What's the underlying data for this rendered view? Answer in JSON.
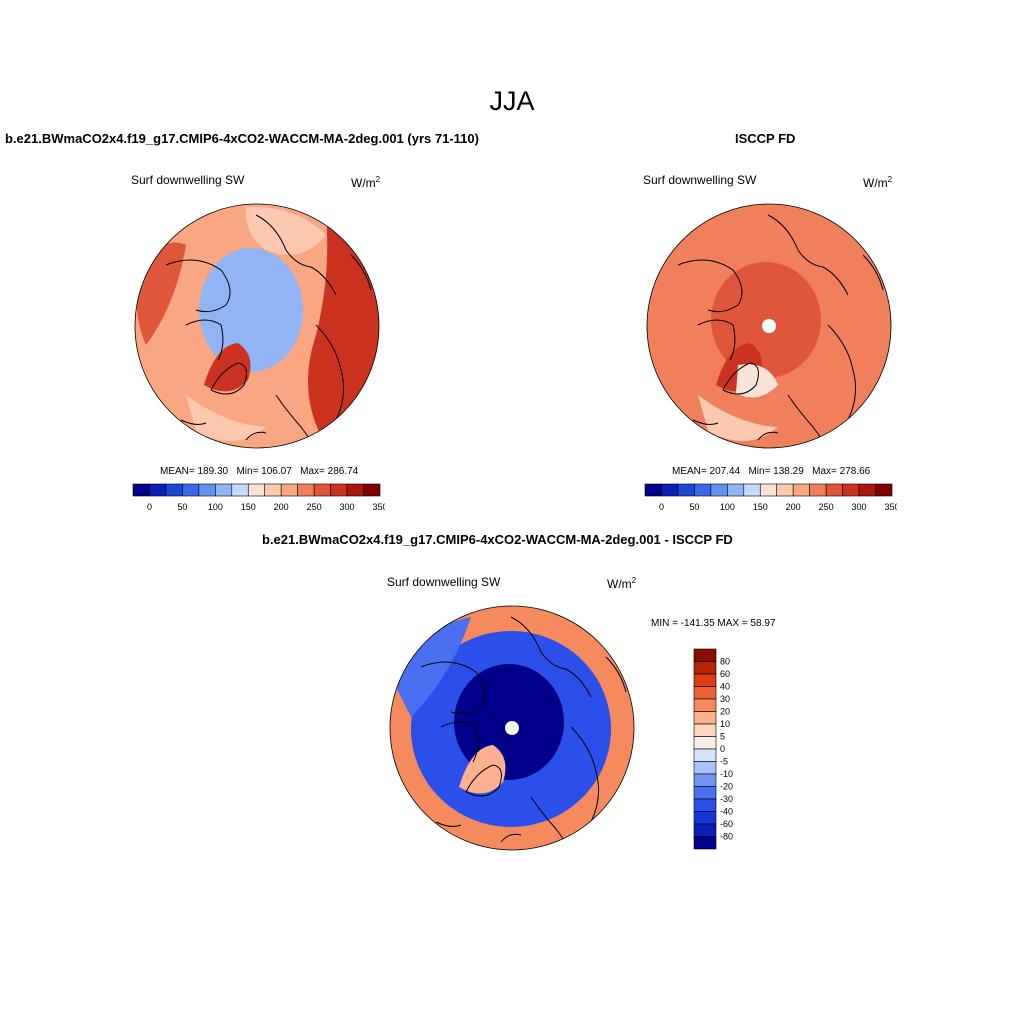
{
  "page": {
    "title": "JJA"
  },
  "colors": {
    "coast": "#000000",
    "missing": "#ffffff",
    "abs_scale": [
      "#00008b",
      "#0a1fb6",
      "#1c46d6",
      "#3a68e6",
      "#6690ee",
      "#93b4f4",
      "#c6dafb",
      "#f7e3d8",
      "#fcc9b0",
      "#f8a782",
      "#f07f5c",
      "#e0563b",
      "#cc3220",
      "#aa1710",
      "#820000"
    ],
    "diff_scale": [
      "#00008b",
      "#0c1fb5",
      "#1636d7",
      "#2b4fe9",
      "#4a6ff0",
      "#7394f3",
      "#a7c2f8",
      "#d6e4fb",
      "#faeee6",
      "#fdd4bf",
      "#fbb18f",
      "#f68a5f",
      "#ee6336",
      "#dd3d12",
      "#b52405",
      "#8a0f00"
    ]
  },
  "chart_data": [
    {
      "type": "heatmap",
      "projection": "north-polar-stereographic",
      "title": "b.e21.BWmaCO2x4.f19_g17.CMIP6-4xCO2-WACCM-MA-2deg.001 (yrs 71-110)",
      "variable": "Surf downwelling SW",
      "units_label": "W/m",
      "units_exp": "2",
      "stats": {
        "mean": "189.30",
        "min": "106.07",
        "max": "286.74"
      },
      "stats_text": {
        "mean": "MEAN= 189.30",
        "min": "Min= 106.07",
        "max": "Max= 286.74"
      },
      "colorbar": {
        "orientation": "horizontal",
        "levels": [
          0,
          25,
          50,
          75,
          100,
          125,
          150,
          175,
          200,
          225,
          250,
          275,
          300,
          325,
          350
        ],
        "tick_labels": [
          "0",
          "50",
          "100",
          "150",
          "200",
          "250",
          "300",
          "350"
        ]
      },
      "regions": [
        {
          "name": "background",
          "value": 215
        },
        {
          "name": "arctic-ocean",
          "value": 120
        },
        {
          "name": "greenland",
          "value": 285
        },
        {
          "name": "eurasia-east",
          "value": 275
        },
        {
          "name": "north-america-west",
          "value": 260
        },
        {
          "name": "siberia",
          "value": 195
        },
        {
          "name": "north-atlantic",
          "value": 175
        }
      ]
    },
    {
      "type": "heatmap",
      "projection": "north-polar-stereographic",
      "title": "ISCCP FD",
      "variable": "Surf downwelling SW",
      "units_label": "W/m",
      "units_exp": "2",
      "stats": {
        "mean": "207.44",
        "min": "138.29",
        "max": "278.66"
      },
      "stats_text": {
        "mean": "MEAN= 207.44",
        "min": "Min= 138.29",
        "max": "Max= 278.66"
      },
      "colorbar": {
        "orientation": "horizontal",
        "levels": [
          0,
          25,
          50,
          75,
          100,
          125,
          150,
          175,
          200,
          225,
          250,
          275,
          300,
          325,
          350
        ],
        "tick_labels": [
          "0",
          "50",
          "100",
          "150",
          "200",
          "250",
          "300",
          "350"
        ]
      },
      "regions": [
        {
          "name": "background",
          "value": 230
        },
        {
          "name": "central-arctic",
          "value": 255
        },
        {
          "name": "greenland",
          "value": 285
        },
        {
          "name": "hudson-bay",
          "value": 165
        },
        {
          "name": "north-atlantic",
          "value": 180
        },
        {
          "name": "north-pole",
          "value": null
        }
      ]
    },
    {
      "type": "heatmap",
      "projection": "north-polar-stereographic",
      "title": "b.e21.BWmaCO2x4.f19_g17.CMIP6-4xCO2-WACCM-MA-2deg.001 - ISCCP FD",
      "variable": "Surf downwelling SW",
      "units_label": "W/m",
      "units_exp": "2",
      "stats_text": {
        "minmax": "MIN = -141.35 MAX =  58.97"
      },
      "colorbar": {
        "orientation": "vertical",
        "levels": [
          -80,
          -60,
          -40,
          -30,
          -20,
          -10,
          -5,
          0,
          5,
          10,
          20,
          30,
          40,
          60,
          80
        ],
        "tick_labels": [
          "80",
          "60",
          "40",
          "30",
          "20",
          "10",
          "5",
          "0",
          "-5",
          "-10",
          "-20",
          "-30",
          "-40",
          "-60",
          "-80"
        ]
      },
      "regions": [
        {
          "name": "background",
          "value": 22
        },
        {
          "name": "arctic-ring",
          "value": -35
        },
        {
          "name": "central-arctic",
          "value": -90
        },
        {
          "name": "greenland",
          "value": 10
        },
        {
          "name": "north-pacific",
          "value": -25
        },
        {
          "name": "north-pole",
          "value": null
        }
      ]
    }
  ]
}
